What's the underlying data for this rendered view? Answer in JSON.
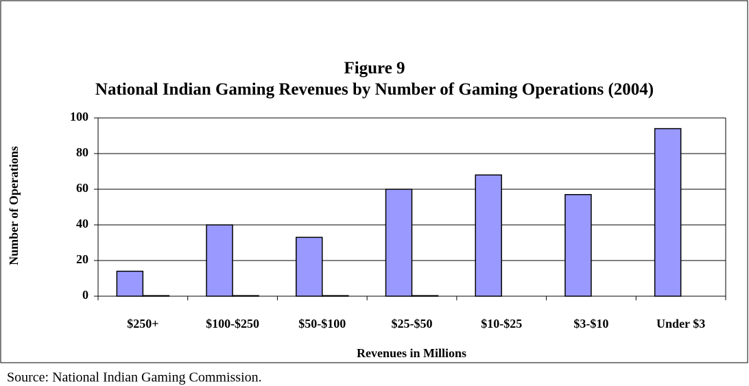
{
  "chart_data": {
    "type": "bar",
    "title": "Figure 9",
    "subtitle": "National Indian Gaming Revenues by Number of Gaming Operations (2004)",
    "x_label": "Revenues in Millions",
    "y_label": "Number of Operations",
    "source": "Source:  National Indian Gaming Commission.",
    "categories": [
      "$250+",
      "$100-$250",
      "$50-$100",
      "$25-$50",
      "$10-$25",
      "$3-$10",
      "Under $3"
    ],
    "series": [
      {
        "color": "#9999ff",
        "values": [
          14,
          40,
          33,
          60,
          68,
          57,
          94
        ]
      },
      {
        "color": "#993366",
        "values": [
          0.3,
          0.3,
          0.3,
          0.3,
          null,
          null,
          null
        ]
      }
    ],
    "ylim": [
      0,
      100
    ],
    "yticks": [
      0,
      20,
      40,
      60,
      80,
      100
    ],
    "grid": true
  }
}
